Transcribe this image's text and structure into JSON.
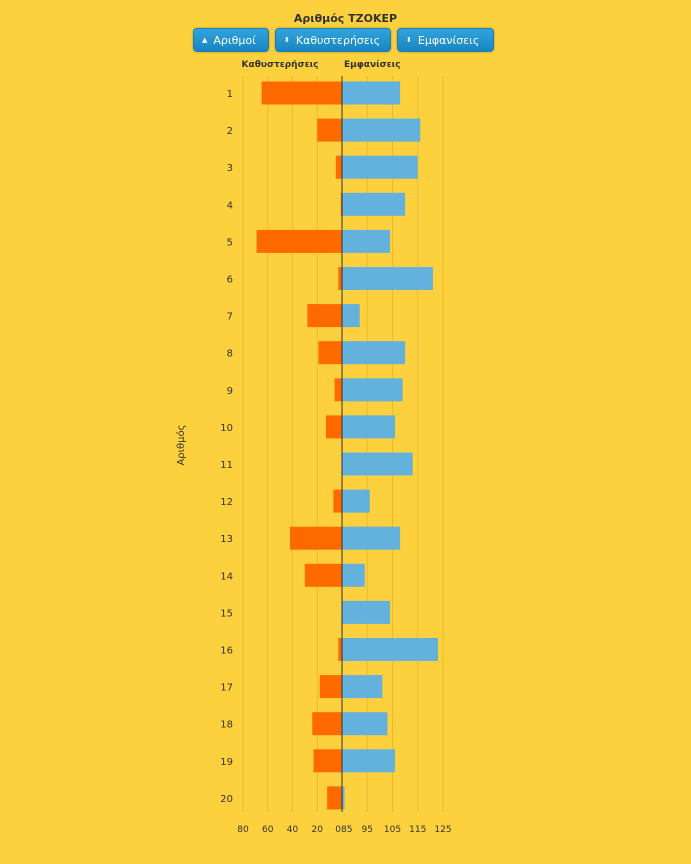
{
  "title": "Αριθμός ΤΖΟΚΕΡ",
  "toolbar": {
    "buttons": [
      {
        "label": "Αριθμοί",
        "icon": "triangle-up-icon",
        "glyph": "▲"
      },
      {
        "label": "Καθυστερήσεις",
        "icon": "sort-updown-icon",
        "glyph": "⬍"
      },
      {
        "label": "Εμφανίσεις",
        "icon": "sort-updown-icon",
        "glyph": "⬍"
      }
    ]
  },
  "chart_data": {
    "type": "bar",
    "orientation": "horizontal-butterfly",
    "ylabel": "Αριθμός",
    "categories": [
      "1",
      "2",
      "3",
      "4",
      "5",
      "6",
      "7",
      "8",
      "9",
      "10",
      "11",
      "12",
      "13",
      "14",
      "15",
      "16",
      "17",
      "18",
      "19",
      "20"
    ],
    "left_axis": {
      "header": "Καθυστερήσεις",
      "ticks": [
        80,
        60,
        40,
        20,
        0
      ],
      "tick_labels": [
        "80",
        "60",
        "40",
        "20",
        "0"
      ],
      "range": [
        0,
        80
      ]
    },
    "right_axis": {
      "header": "Εμφανίσεις",
      "ticks": [
        85,
        95,
        105,
        115,
        125
      ],
      "tick_labels": [
        "85",
        "95",
        "105",
        "115",
        "125"
      ],
      "range": [
        85,
        125
      ]
    },
    "series": [
      {
        "name": "Καθυστερήσεις",
        "color": "#FF6A00",
        "values": [
          65,
          20,
          5,
          1,
          69,
          3,
          28,
          19,
          6,
          13,
          0,
          7,
          42,
          30,
          0,
          3,
          18,
          24,
          23,
          12
        ]
      },
      {
        "name": "Εμφανίσεις",
        "color": "#63B1DD",
        "values": [
          108,
          116,
          115,
          110,
          104,
          121,
          92,
          110,
          109,
          106,
          113,
          96,
          108,
          94,
          104,
          123,
          101,
          103,
          106,
          86
        ]
      }
    ],
    "grid": true
  }
}
